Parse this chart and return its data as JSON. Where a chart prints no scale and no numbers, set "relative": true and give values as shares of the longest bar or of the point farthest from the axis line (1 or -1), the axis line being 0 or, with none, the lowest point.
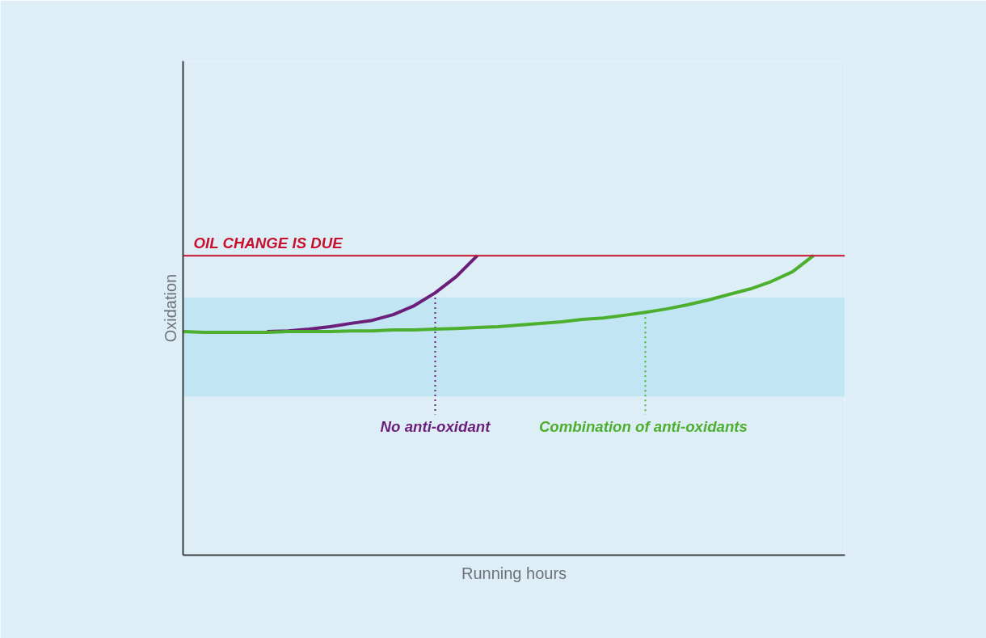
{
  "chart_data": {
    "type": "line",
    "relative": true,
    "xlabel": "Running hours",
    "ylabel": "Oxidation",
    "categories": [
      null,
      null,
      null,
      null,
      null,
      null,
      null,
      null,
      null,
      null,
      null,
      null,
      null,
      null,
      null,
      null,
      null,
      null,
      null,
      null,
      null,
      null,
      null,
      null,
      null,
      null,
      null,
      null,
      null,
      null,
      null,
      null
    ],
    "series": [
      {
        "name": "No anti-oxidant",
        "color": "#6b1e7a",
        "values": [
          null,
          null,
          null,
          null,
          0.747,
          0.749,
          0.755,
          0.763,
          0.774,
          0.784,
          0.803,
          0.833,
          0.876,
          0.93,
          1.0,
          null,
          null,
          null,
          null,
          null,
          null,
          null,
          null,
          null,
          null,
          null,
          null,
          null,
          null,
          null,
          null,
          null
        ]
      },
      {
        "name": "Combination  of anti-oxidants",
        "color": "#4caf2e",
        "values": [
          0.747,
          0.744,
          0.744,
          0.744,
          0.744,
          0.747,
          0.747,
          0.747,
          0.749,
          0.749,
          0.752,
          0.752,
          0.755,
          0.757,
          0.76,
          0.763,
          0.768,
          0.774,
          0.779,
          0.787,
          0.792,
          0.801,
          0.811,
          0.822,
          0.836,
          0.852,
          0.871,
          0.889,
          0.914,
          0.946,
          1.0,
          null
        ]
      }
    ],
    "ref_lines": [
      {
        "axis": "y",
        "value": 1.0,
        "label": "OIL CHANGE IS DUE",
        "color": "#c8102e"
      }
    ],
    "bands": [
      {
        "axis": "y",
        "from": 0.53,
        "to": 0.86,
        "color": "#c2e5f4"
      }
    ],
    "grid": false,
    "marker": "none",
    "line_style": "solid"
  }
}
